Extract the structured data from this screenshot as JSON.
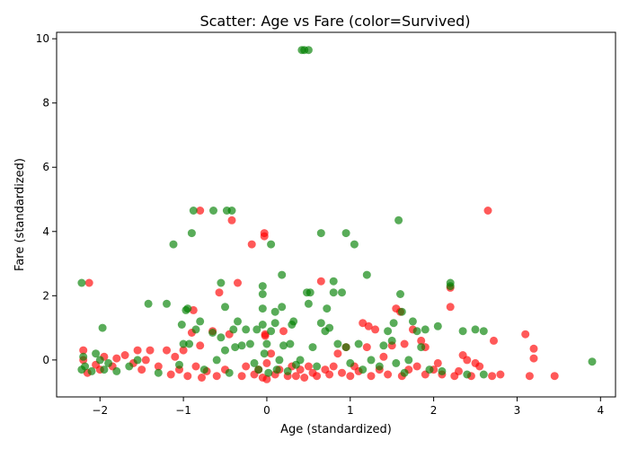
{
  "chart_data": {
    "type": "scatter",
    "title": "Scatter: Age vs Fare (color=Survived)",
    "xlabel": "Age (standardized)",
    "ylabel": "Fare (standardized)",
    "xlim": [
      -2.52,
      4.18
    ],
    "ylim": [
      -1.15,
      10.2
    ],
    "xticks": [
      -2,
      -1,
      0,
      1,
      2,
      3,
      4
    ],
    "yticks": [
      0,
      2,
      4,
      6,
      8,
      10
    ],
    "grid": false,
    "legend": "none",
    "series": [
      {
        "color": "#ff0000",
        "opacity": 0.65,
        "points": [
          [
            -2.2,
            0.3
          ],
          [
            -2.2,
            0.0
          ],
          [
            -2.15,
            -0.4
          ],
          [
            -2.13,
            2.4
          ],
          [
            -2.05,
            -0.15
          ],
          [
            -2.0,
            -0.3
          ],
          [
            -1.95,
            0.1
          ],
          [
            -1.85,
            -0.2
          ],
          [
            -1.8,
            0.05
          ],
          [
            -1.7,
            0.15
          ],
          [
            -1.6,
            -0.1
          ],
          [
            -1.55,
            0.3
          ],
          [
            -1.5,
            -0.3
          ],
          [
            -1.45,
            0.0
          ],
          [
            -1.4,
            0.3
          ],
          [
            -1.3,
            -0.2
          ],
          [
            -1.2,
            0.3
          ],
          [
            -1.15,
            -0.45
          ],
          [
            -1.1,
            0.1
          ],
          [
            -1.05,
            -0.3
          ],
          [
            -1.0,
            0.3
          ],
          [
            -0.95,
            -0.5
          ],
          [
            -0.9,
            0.85
          ],
          [
            -0.88,
            1.55
          ],
          [
            -0.85,
            -0.2
          ],
          [
            -0.8,
            4.65
          ],
          [
            -0.8,
            0.45
          ],
          [
            -0.78,
            -0.55
          ],
          [
            -0.72,
            -0.35
          ],
          [
            -0.65,
            0.9
          ],
          [
            -0.6,
            -0.5
          ],
          [
            -0.57,
            2.1
          ],
          [
            -0.5,
            -0.3
          ],
          [
            -0.45,
            0.8
          ],
          [
            -0.42,
            4.35
          ],
          [
            -0.35,
            2.4
          ],
          [
            -0.3,
            -0.5
          ],
          [
            -0.25,
            -0.2
          ],
          [
            -0.18,
            3.6
          ],
          [
            -0.15,
            -0.45
          ],
          [
            -0.1,
            -0.3
          ],
          [
            -0.05,
            -0.55
          ],
          [
            -0.03,
            3.95
          ],
          [
            -0.03,
            3.85
          ],
          [
            -0.02,
            0.8
          ],
          [
            -0.02,
            0.75
          ],
          [
            0.0,
            -0.6
          ],
          [
            0.0,
            -0.1
          ],
          [
            0.05,
            0.2
          ],
          [
            0.1,
            -0.45
          ],
          [
            0.15,
            -0.3
          ],
          [
            0.2,
            0.9
          ],
          [
            0.25,
            -0.5
          ],
          [
            0.3,
            -0.2
          ],
          [
            0.35,
            -0.5
          ],
          [
            0.4,
            -0.3
          ],
          [
            0.45,
            -0.55
          ],
          [
            0.5,
            -0.2
          ],
          [
            0.55,
            -0.4
          ],
          [
            0.6,
            -0.5
          ],
          [
            0.65,
            2.45
          ],
          [
            0.7,
            -0.3
          ],
          [
            0.75,
            -0.45
          ],
          [
            0.8,
            -0.2
          ],
          [
            0.85,
            0.2
          ],
          [
            0.9,
            -0.4
          ],
          [
            0.95,
            0.4
          ],
          [
            1.0,
            -0.5
          ],
          [
            1.05,
            -0.2
          ],
          [
            1.1,
            -0.35
          ],
          [
            1.15,
            1.15
          ],
          [
            1.2,
            0.4
          ],
          [
            1.22,
            1.05
          ],
          [
            1.25,
            -0.5
          ],
          [
            1.3,
            0.95
          ],
          [
            1.35,
            -0.3
          ],
          [
            1.4,
            0.1
          ],
          [
            1.45,
            -0.45
          ],
          [
            1.5,
            0.45
          ],
          [
            1.55,
            1.6
          ],
          [
            1.6,
            1.5
          ],
          [
            1.62,
            -0.5
          ],
          [
            1.65,
            0.5
          ],
          [
            1.7,
            -0.3
          ],
          [
            1.75,
            0.95
          ],
          [
            1.8,
            -0.2
          ],
          [
            1.85,
            0.6
          ],
          [
            1.9,
            -0.45
          ],
          [
            1.9,
            0.4
          ],
          [
            2.0,
            -0.3
          ],
          [
            2.05,
            -0.1
          ],
          [
            2.1,
            -0.45
          ],
          [
            2.2,
            1.65
          ],
          [
            2.2,
            2.25
          ],
          [
            2.25,
            -0.5
          ],
          [
            2.3,
            -0.35
          ],
          [
            2.35,
            0.15
          ],
          [
            2.4,
            0.0
          ],
          [
            2.45,
            -0.5
          ],
          [
            2.5,
            -0.1
          ],
          [
            2.55,
            -0.2
          ],
          [
            2.65,
            4.65
          ],
          [
            2.7,
            -0.5
          ],
          [
            2.72,
            0.6
          ],
          [
            2.8,
            -0.45
          ],
          [
            3.1,
            0.8
          ],
          [
            3.15,
            -0.5
          ],
          [
            3.2,
            0.35
          ],
          [
            3.2,
            0.05
          ],
          [
            3.45,
            -0.5
          ]
        ]
      },
      {
        "color": "#008000",
        "opacity": 0.65,
        "points": [
          [
            -2.22,
            2.4
          ],
          [
            -2.22,
            -0.3
          ],
          [
            -2.2,
            0.1
          ],
          [
            -2.18,
            -0.2
          ],
          [
            -2.1,
            -0.35
          ],
          [
            -2.05,
            0.2
          ],
          [
            -2.0,
            0.0
          ],
          [
            -1.97,
            1.0
          ],
          [
            -1.95,
            -0.3
          ],
          [
            -1.9,
            -0.1
          ],
          [
            -1.8,
            -0.35
          ],
          [
            -1.65,
            -0.2
          ],
          [
            -1.55,
            0.0
          ],
          [
            -1.42,
            1.75
          ],
          [
            -1.3,
            -0.4
          ],
          [
            -1.2,
            1.75
          ],
          [
            -1.12,
            3.6
          ],
          [
            -1.05,
            -0.15
          ],
          [
            -1.02,
            1.1
          ],
          [
            -1.0,
            0.5
          ],
          [
            -0.97,
            1.55
          ],
          [
            -0.95,
            1.6
          ],
          [
            -0.93,
            0.5
          ],
          [
            -0.9,
            3.95
          ],
          [
            -0.88,
            4.65
          ],
          [
            -0.85,
            0.95
          ],
          [
            -0.8,
            1.2
          ],
          [
            -0.75,
            -0.3
          ],
          [
            -0.65,
            0.85
          ],
          [
            -0.64,
            4.65
          ],
          [
            -0.6,
            0.0
          ],
          [
            -0.55,
            2.4
          ],
          [
            -0.55,
            0.7
          ],
          [
            -0.5,
            1.65
          ],
          [
            -0.5,
            0.3
          ],
          [
            -0.48,
            4.65
          ],
          [
            -0.45,
            -0.4
          ],
          [
            -0.42,
            4.65
          ],
          [
            -0.4,
            0.95
          ],
          [
            -0.38,
            0.4
          ],
          [
            -0.35,
            1.2
          ],
          [
            -0.3,
            0.45
          ],
          [
            -0.25,
            0.95
          ],
          [
            -0.2,
            0.5
          ],
          [
            -0.15,
            -0.1
          ],
          [
            -0.12,
            0.95
          ],
          [
            -0.1,
            -0.3
          ],
          [
            -0.05,
            2.3
          ],
          [
            -0.05,
            2.05
          ],
          [
            -0.05,
            1.6
          ],
          [
            -0.05,
            1.1
          ],
          [
            -0.03,
            0.2
          ],
          [
            0.0,
            0.5
          ],
          [
            0.02,
            -0.4
          ],
          [
            0.05,
            3.6
          ],
          [
            0.05,
            0.9
          ],
          [
            0.1,
            1.5
          ],
          [
            0.1,
            1.15
          ],
          [
            0.12,
            -0.3
          ],
          [
            0.15,
            0.0
          ],
          [
            0.18,
            2.65
          ],
          [
            0.18,
            1.65
          ],
          [
            0.2,
            0.45
          ],
          [
            0.25,
            -0.35
          ],
          [
            0.28,
            0.5
          ],
          [
            0.3,
            1.1
          ],
          [
            0.32,
            1.2
          ],
          [
            0.35,
            -0.15
          ],
          [
            0.4,
            0.0
          ],
          [
            0.42,
            9.65
          ],
          [
            0.45,
            9.65
          ],
          [
            0.48,
            2.1
          ],
          [
            0.5,
            9.65
          ],
          [
            0.5,
            1.75
          ],
          [
            0.52,
            2.1
          ],
          [
            0.55,
            0.4
          ],
          [
            0.6,
            -0.2
          ],
          [
            0.65,
            3.95
          ],
          [
            0.65,
            1.15
          ],
          [
            0.7,
            0.9
          ],
          [
            0.72,
            1.6
          ],
          [
            0.75,
            1.0
          ],
          [
            0.8,
            2.45
          ],
          [
            0.8,
            2.1
          ],
          [
            0.85,
            0.5
          ],
          [
            0.9,
            2.1
          ],
          [
            0.95,
            3.95
          ],
          [
            0.95,
            0.4
          ],
          [
            1.0,
            -0.1
          ],
          [
            1.05,
            3.6
          ],
          [
            1.1,
            0.5
          ],
          [
            1.15,
            -0.3
          ],
          [
            1.2,
            2.65
          ],
          [
            1.25,
            0.0
          ],
          [
            1.35,
            -0.2
          ],
          [
            1.4,
            0.45
          ],
          [
            1.45,
            0.9
          ],
          [
            1.5,
            0.6
          ],
          [
            1.52,
            1.15
          ],
          [
            1.55,
            -0.1
          ],
          [
            1.58,
            4.35
          ],
          [
            1.6,
            2.05
          ],
          [
            1.62,
            1.5
          ],
          [
            1.65,
            -0.4
          ],
          [
            1.7,
            0.0
          ],
          [
            1.75,
            1.2
          ],
          [
            1.8,
            0.9
          ],
          [
            1.85,
            0.4
          ],
          [
            1.9,
            0.95
          ],
          [
            1.95,
            -0.3
          ],
          [
            2.05,
            1.05
          ],
          [
            2.1,
            -0.35
          ],
          [
            2.2,
            2.4
          ],
          [
            2.2,
            2.3
          ],
          [
            2.35,
            0.9
          ],
          [
            2.4,
            -0.45
          ],
          [
            2.5,
            0.95
          ],
          [
            2.6,
            0.9
          ],
          [
            2.6,
            -0.45
          ],
          [
            3.9,
            -0.05
          ]
        ]
      }
    ]
  }
}
